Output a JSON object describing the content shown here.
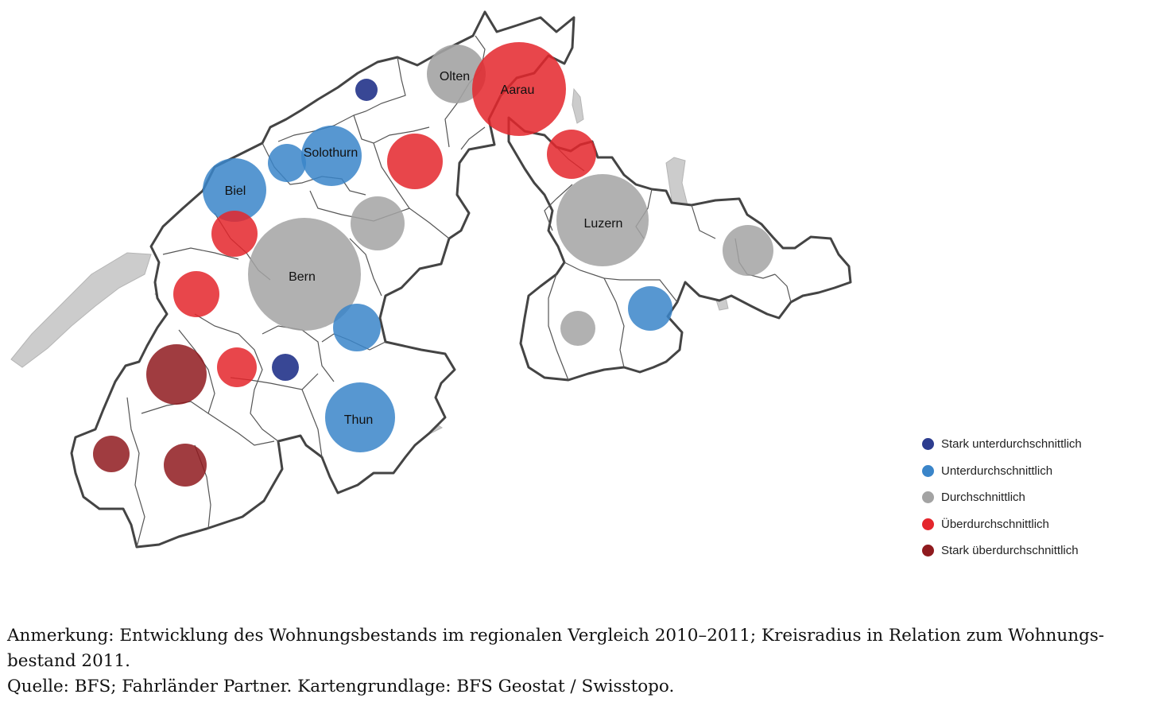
{
  "cities": {
    "olten": "Olten",
    "aarau": "Aarau",
    "solothurn": "Solothurn",
    "biel": "Biel",
    "bern": "Bern",
    "luzern": "Luzern",
    "thun": "Thun"
  },
  "categories": {
    "stark_unter": "#2d3d8f",
    "unter": "#3a85c9",
    "durch": "#a3a3a3",
    "ueber": "#e4262c",
    "stark_ueber": "#8f1a1e"
  },
  "legend": {
    "items": [
      {
        "label": "Stark unterdurchschnittlich",
        "color": "#2d3d8f"
      },
      {
        "label": "Unterdurchschnittlich",
        "color": "#3a85c9"
      },
      {
        "label": "Durchschnittlich",
        "color": "#a3a3a3"
      },
      {
        "label": "Überdurchschnittlich",
        "color": "#e4262c"
      },
      {
        "label": "Stark überdurchschnittlich",
        "color": "#8f1a1e"
      }
    ]
  },
  "notes": {
    "line1": "Anmerkung: Entwicklung des Wohnungsbestands im regionalen Vergleich 2010–2011; Kreisradius in Relation zum Wohnungs-",
    "line2": "bestand 2011.",
    "line3": "Quelle: BFS; Fahrländer Partner. Kartengrundlage: BFS Geostat / Swisstopo."
  }
}
